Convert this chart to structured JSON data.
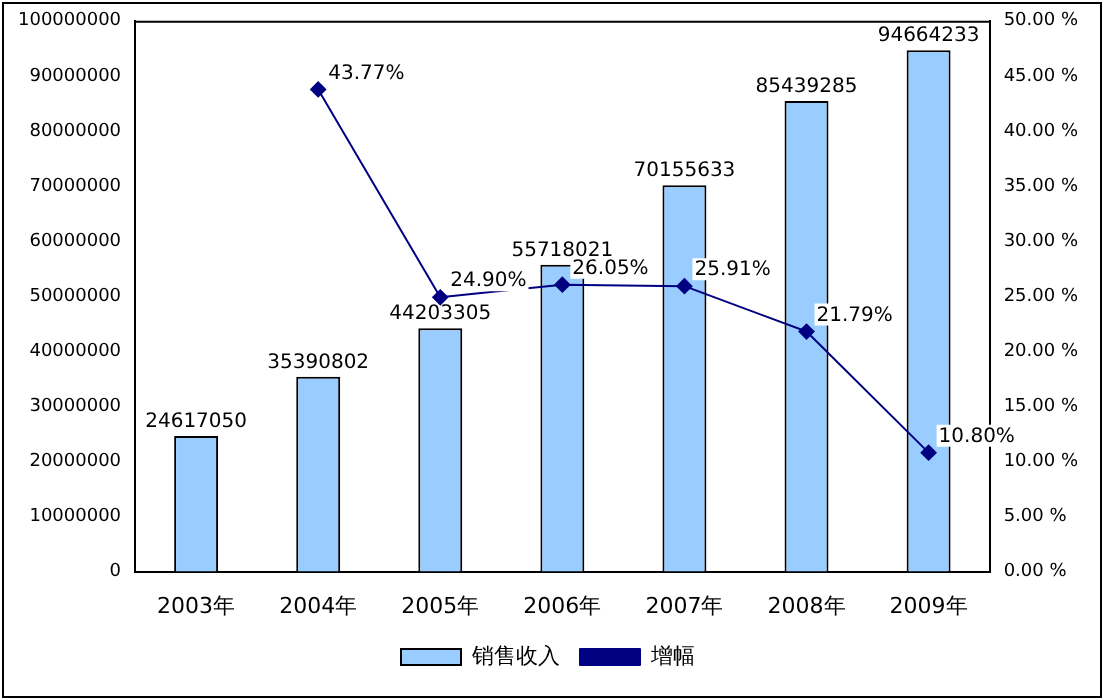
{
  "chart_data": {
    "type": "bar",
    "categories": [
      "2003年",
      "2004年",
      "2005年",
      "2006年",
      "2007年",
      "2008年",
      "2009年"
    ],
    "series": [
      {
        "name": "销售收入",
        "color": "#99ccff",
        "values": [
          24617050,
          35390802,
          44203305,
          55718021,
          70155633,
          85439285,
          94664233
        ],
        "value_labels": [
          "24617050",
          "35390802",
          "44203305",
          "55718021",
          "70155633",
          "85439285",
          "94664233"
        ]
      },
      {
        "name": "增幅",
        "type": "line",
        "axis": "y2",
        "color": "#000080",
        "values": [
          null,
          43.77,
          24.9,
          26.05,
          25.91,
          21.79,
          10.8
        ],
        "value_labels": [
          null,
          "43.77%",
          "24.90%",
          "26.05%",
          "25.91%",
          "21.79%",
          "10.80%"
        ]
      }
    ],
    "ylim": [
      0,
      100000000
    ],
    "yticks": [
      0,
      10000000,
      20000000,
      30000000,
      40000000,
      50000000,
      60000000,
      70000000,
      80000000,
      90000000,
      100000000
    ],
    "y2lim": [
      0,
      50
    ],
    "y2ticks": [
      {
        "value": 0,
        "label": "0.00 %"
      },
      {
        "value": 5,
        "label": "5.00 %"
      },
      {
        "value": 10,
        "label": "10.00 %"
      },
      {
        "value": 15,
        "label": "15.00 %"
      },
      {
        "value": 20,
        "label": "20.00 %"
      },
      {
        "value": 25,
        "label": "25.00 %"
      },
      {
        "value": 30,
        "label": "30.00 %"
      },
      {
        "value": 35,
        "label": "35.00 %"
      },
      {
        "value": 40,
        "label": "40.00 %"
      },
      {
        "value": 45,
        "label": "45.00 %"
      },
      {
        "value": 50,
        "label": "50.00 %"
      }
    ],
    "grid": false,
    "legend": "bottom",
    "marker": "diamond"
  }
}
